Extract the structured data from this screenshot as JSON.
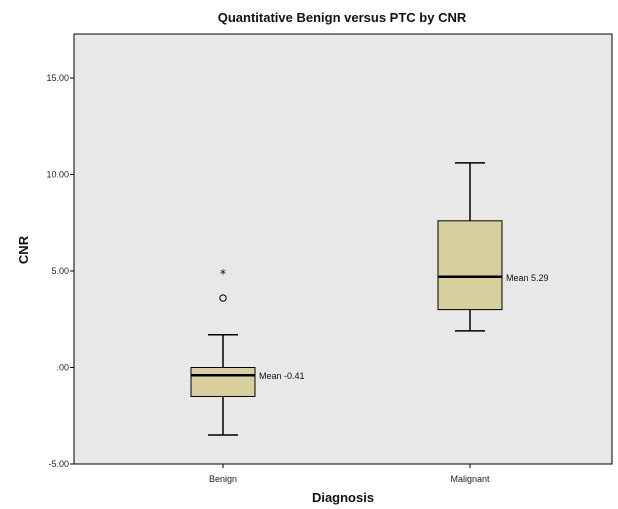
{
  "chart_data": {
    "type": "boxplot",
    "title": "Quantitative Benign versus PTC by CNR",
    "xlabel": "Diagnosis",
    "ylabel": "CNR",
    "ylim": [
      -5,
      17
    ],
    "yticks": [
      -5,
      0,
      5,
      10,
      15
    ],
    "ytick_labels": [
      "-5.00",
      ".00",
      "5.00",
      "10.00",
      "15.00"
    ],
    "categories": [
      "Benign",
      "Malignant"
    ],
    "box_color": "#d8d09c",
    "background": "#e8e8e8",
    "boxes": [
      {
        "category": "Benign",
        "whisker_low": -3.5,
        "q1": -1.5,
        "median": -0.4,
        "q3": 0.0,
        "whisker_high": 1.7,
        "outliers": [
          3.6
        ],
        "extremes": [
          4.9
        ],
        "mean_label": "Mean -0.41"
      },
      {
        "category": "Malignant",
        "whisker_low": 1.9,
        "q1": 3.0,
        "median": 4.7,
        "q3": 7.6,
        "whisker_high": 10.6,
        "outliers": [],
        "extremes": [],
        "mean_label": "Mean 5.29"
      }
    ]
  }
}
